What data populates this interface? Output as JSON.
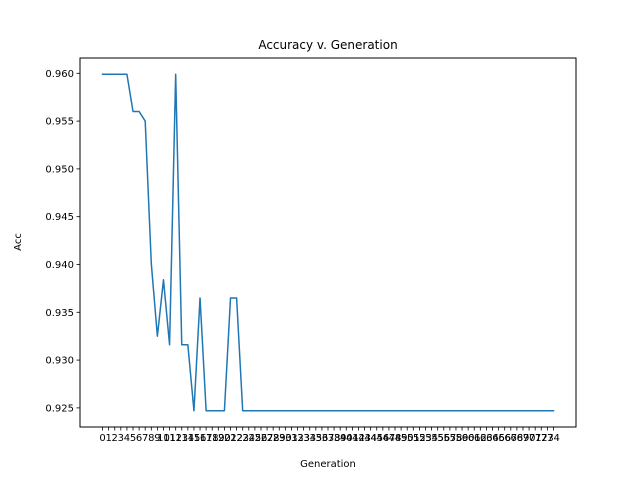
{
  "chart_data": {
    "type": "line",
    "title": "Accuracy v. Generation",
    "xlabel": "Generation",
    "ylabel": "Acc",
    "xlim": [
      -3.7,
      77.7
    ],
    "ylim": [
      0.923,
      0.9616
    ],
    "grid": false,
    "legend": "none",
    "x_ticks": [
      0,
      1,
      2,
      3,
      4,
      5,
      6,
      7,
      8,
      9,
      10,
      11,
      12,
      13,
      14,
      15,
      16,
      17,
      18,
      19,
      20,
      21,
      22,
      23,
      24,
      25,
      26,
      27,
      28,
      29,
      30,
      31,
      32,
      33,
      34,
      35,
      36,
      37,
      38,
      39,
      40,
      41,
      42,
      43,
      44,
      45,
      46,
      47,
      48,
      49,
      50,
      51,
      52,
      53,
      54,
      55,
      56,
      57,
      58,
      59,
      60,
      61,
      62,
      63,
      64,
      65,
      66,
      67,
      68,
      69,
      70,
      71,
      72,
      73,
      74
    ],
    "y_ticks": [
      "0.925",
      "0.930",
      "0.935",
      "0.940",
      "0.945",
      "0.950",
      "0.955",
      "0.960"
    ],
    "y_tick_values": [
      0.925,
      0.93,
      0.935,
      0.94,
      0.945,
      0.95,
      0.955,
      0.96
    ],
    "series": [
      {
        "color": "#1f77b4",
        "x": [
          0,
          1,
          2,
          3,
          4,
          5,
          6,
          7,
          8,
          9,
          10,
          11,
          12,
          13,
          14,
          15,
          16,
          17,
          18,
          19,
          20,
          21,
          22,
          23,
          24,
          25,
          26,
          27,
          28,
          29,
          30,
          31,
          32,
          33,
          34,
          35,
          36,
          37,
          38,
          39,
          40,
          41,
          42,
          43,
          44,
          45,
          46,
          47,
          48,
          49,
          50,
          51,
          52,
          53,
          54,
          55,
          56,
          57,
          58,
          59,
          60,
          61,
          62,
          63,
          64,
          65,
          66,
          67,
          68,
          69,
          70,
          71,
          72,
          73,
          74
        ],
        "values": [
          0.9599,
          0.9599,
          0.9599,
          0.9599,
          0.9599,
          0.956,
          0.956,
          0.955,
          0.9401,
          0.9325,
          0.9384,
          0.9316,
          0.9599,
          0.9316,
          0.9316,
          0.9247,
          0.9365,
          0.9247,
          0.9247,
          0.9247,
          0.9247,
          0.9365,
          0.9365,
          0.9247,
          0.9247,
          0.9247,
          0.9247,
          0.9247,
          0.9247,
          0.9247,
          0.9247,
          0.9247,
          0.9247,
          0.9247,
          0.9247,
          0.9247,
          0.9247,
          0.9247,
          0.9247,
          0.9247,
          0.9247,
          0.9247,
          0.9247,
          0.9247,
          0.9247,
          0.9247,
          0.9247,
          0.9247,
          0.9247,
          0.9247,
          0.9247,
          0.9247,
          0.9247,
          0.9247,
          0.9247,
          0.9247,
          0.9247,
          0.9247,
          0.9247,
          0.9247,
          0.9247,
          0.9247,
          0.9247,
          0.9247,
          0.9247,
          0.9247,
          0.9247,
          0.9247,
          0.9247,
          0.9247,
          0.9247,
          0.9247,
          0.9247,
          0.9247,
          0.9247
        ]
      }
    ]
  }
}
